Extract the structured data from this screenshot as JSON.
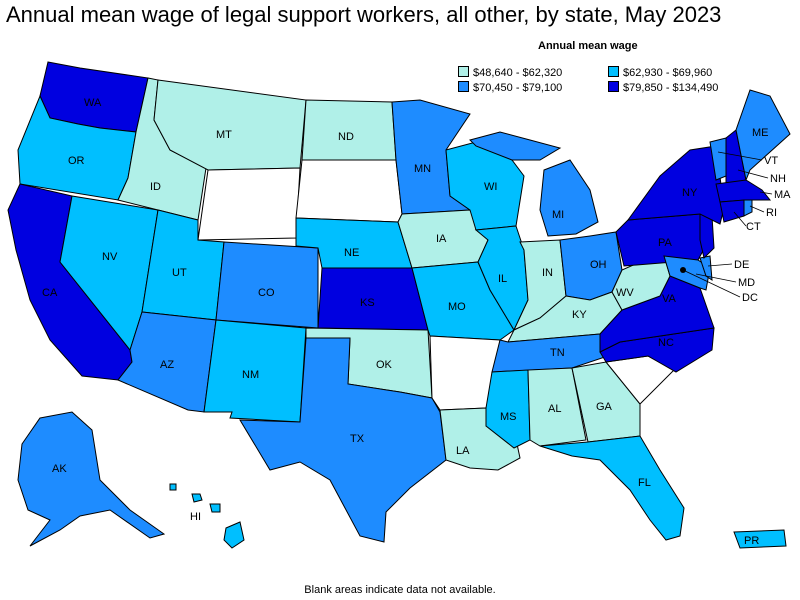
{
  "title": "Annual mean wage of legal support workers, all other, by state, May 2023",
  "legend": {
    "title": "Annual mean wage",
    "items": [
      {
        "label": "$48,640 - $62,320",
        "color": "#b0f0e8"
      },
      {
        "label": "$62,930 - $69,960",
        "color": "#00bfff"
      },
      {
        "label": "$70,450 - $79,100",
        "color": "#1e8cff"
      },
      {
        "label": "$79,850 - $134,490",
        "color": "#0000e0"
      }
    ]
  },
  "footnote": "Blank areas indicate data not available.",
  "states": {
    "WA": "WA",
    "OR": "OR",
    "CA": "CA",
    "NV": "NV",
    "ID": "ID",
    "MT": "MT",
    "UT": "UT",
    "AZ": "AZ",
    "CO": "CO",
    "NM": "NM",
    "ND": "ND",
    "NE": "NE",
    "KS": "KS",
    "OK": "OK",
    "TX": "TX",
    "MN": "MN",
    "IA": "IA",
    "MO": "MO",
    "LA": "LA",
    "WI": "WI",
    "IL": "IL",
    "MI": "MI",
    "IN": "IN",
    "OH": "OH",
    "KY": "KY",
    "TN": "TN",
    "MS": "MS",
    "AL": "AL",
    "GA": "GA",
    "FL": "FL",
    "WV": "WV",
    "VA": "VA",
    "NC": "NC",
    "PA": "PA",
    "NY": "NY",
    "ME": "ME",
    "VT": "VT",
    "NH": "NH",
    "MA": "MA",
    "RI": "RI",
    "CT": "CT",
    "DE": "DE",
    "MD": "MD",
    "DC": "DC",
    "AK": "AK",
    "HI": "HI",
    "PR": "PR"
  }
}
